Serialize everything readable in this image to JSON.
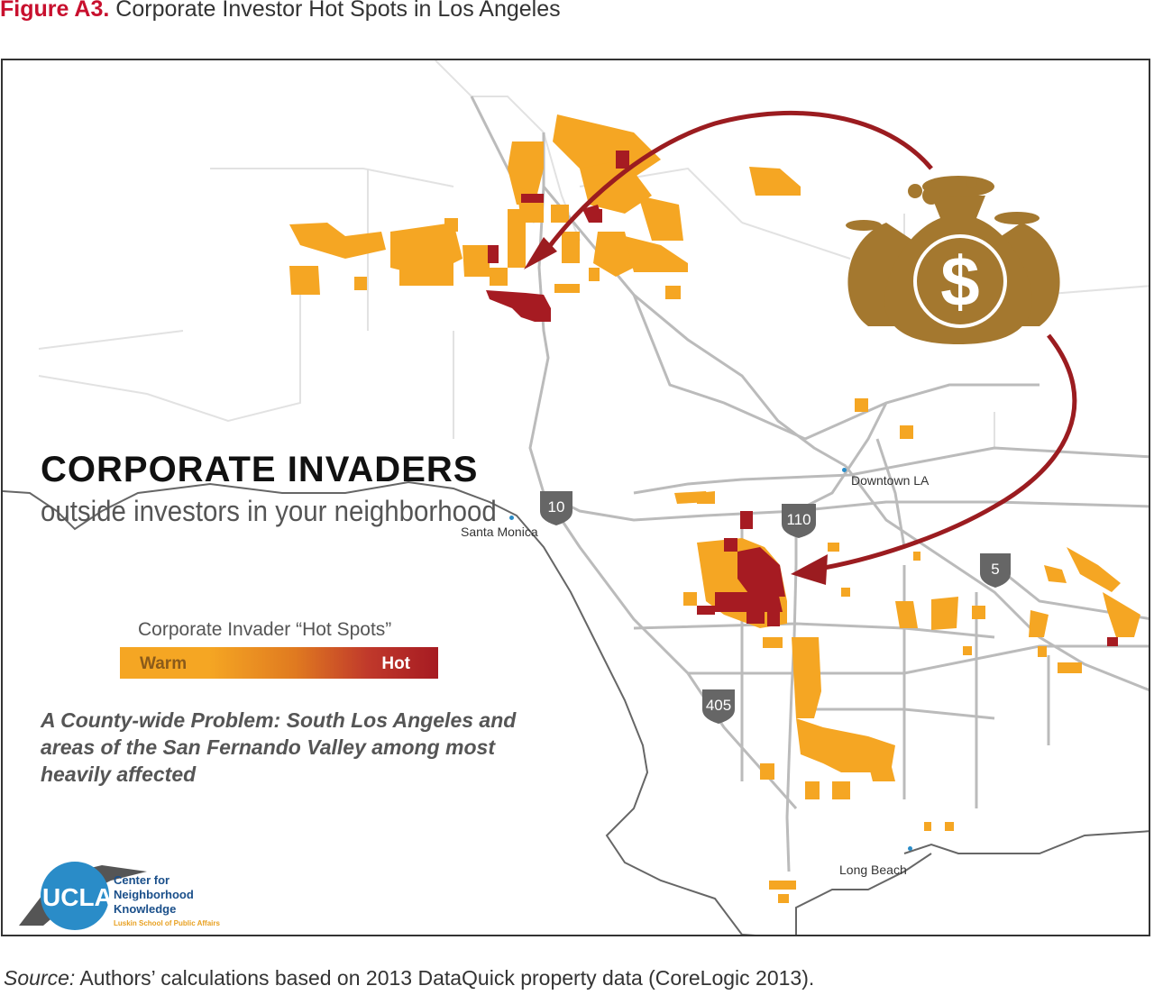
{
  "figure": {
    "label": "Figure A3.",
    "title": "Corporate Investor Hot Spots in Los Angeles"
  },
  "map": {
    "headline": "CORPORATE INVADERS",
    "subheadline": "outside investors in your neighborhood",
    "legend": {
      "title": "Corporate Invader “Hot Spots”",
      "low_label": "Warm",
      "high_label": "Hot",
      "low_color": "#f5a623",
      "high_color": "#a61b22"
    },
    "tagline": "A County-wide Problem: South Los Angeles and areas of the San Fernando Valley among most heavily affected",
    "places": {
      "downtown": "Downtown LA",
      "santa_monica": "Santa Monica",
      "long_beach": "Long Beach"
    },
    "highways": {
      "i10": "10",
      "i110": "110",
      "i5": "5",
      "i405": "405"
    },
    "icon": "money-bags-icon",
    "icon_symbol": "$",
    "colors": {
      "warm": "#f5a623",
      "hot": "#a61b22",
      "arrow": "#9b1c20",
      "road": "#bbbbbb",
      "coast": "#555555",
      "bag": "#a4782f"
    },
    "logo": {
      "ucla": "UCLA",
      "center": "Center for Neighborhood Knowledge",
      "school": "Luskin School of Public Affairs"
    }
  },
  "source": {
    "label": "Source:",
    "text": "Authors’ calculations based on 2013 DataQuick property data (CoreLogic 2013)."
  }
}
